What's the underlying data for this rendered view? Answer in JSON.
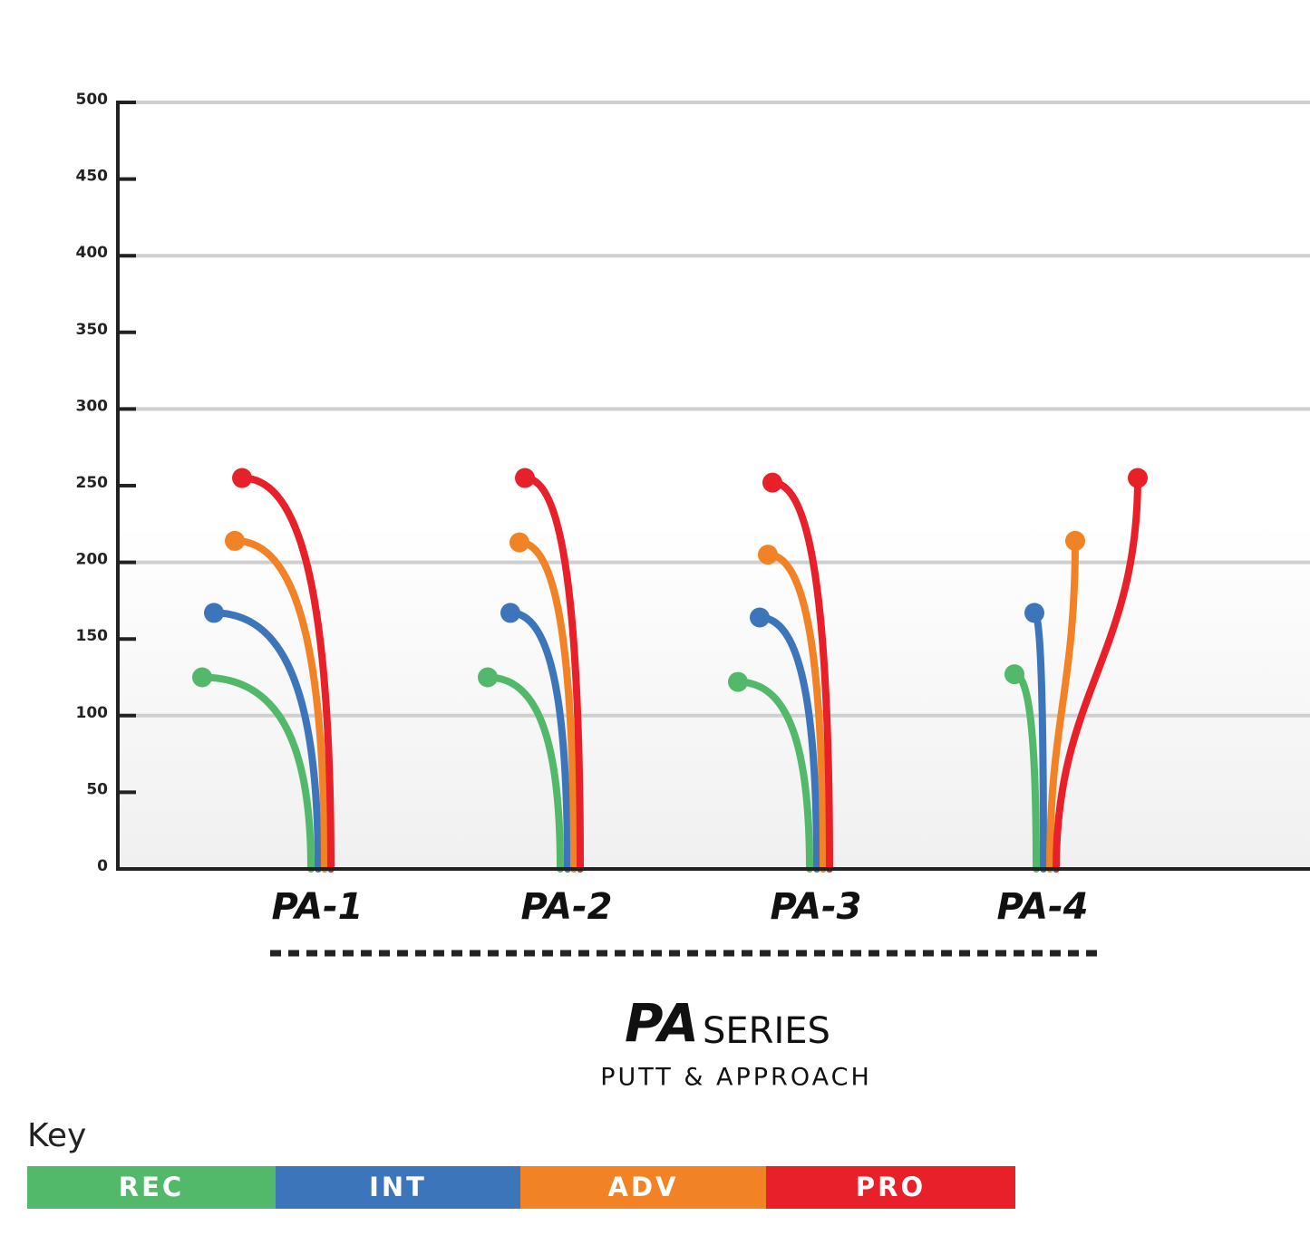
{
  "chart_data": {
    "type": "flight",
    "categories": [
      "PA-1",
      "PA-2",
      "PA-3",
      "PA-4"
    ],
    "series": [
      {
        "name": "REC",
        "color": "#52b96a",
        "values": [
          125,
          125,
          122,
          127
        ]
      },
      {
        "name": "INT",
        "color": "#3d75bb",
        "values": [
          167,
          167,
          164,
          167
        ]
      },
      {
        "name": "ADV",
        "color": "#f28226",
        "values": [
          214,
          213,
          205,
          214
        ]
      },
      {
        "name": "PRO",
        "color": "#e8202a",
        "values": [
          255,
          255,
          252,
          255
        ]
      }
    ],
    "ylim": [
      0,
      500
    ],
    "yticks": [
      0,
      50,
      100,
      150,
      200,
      250,
      300,
      350,
      400,
      450,
      500
    ],
    "grid_lines": [
      100,
      200,
      300,
      400,
      500
    ],
    "series_logo": "PA",
    "series_title": "SERIES",
    "subtitle": "PUTT & APPROACH",
    "legend_title": "Key"
  }
}
